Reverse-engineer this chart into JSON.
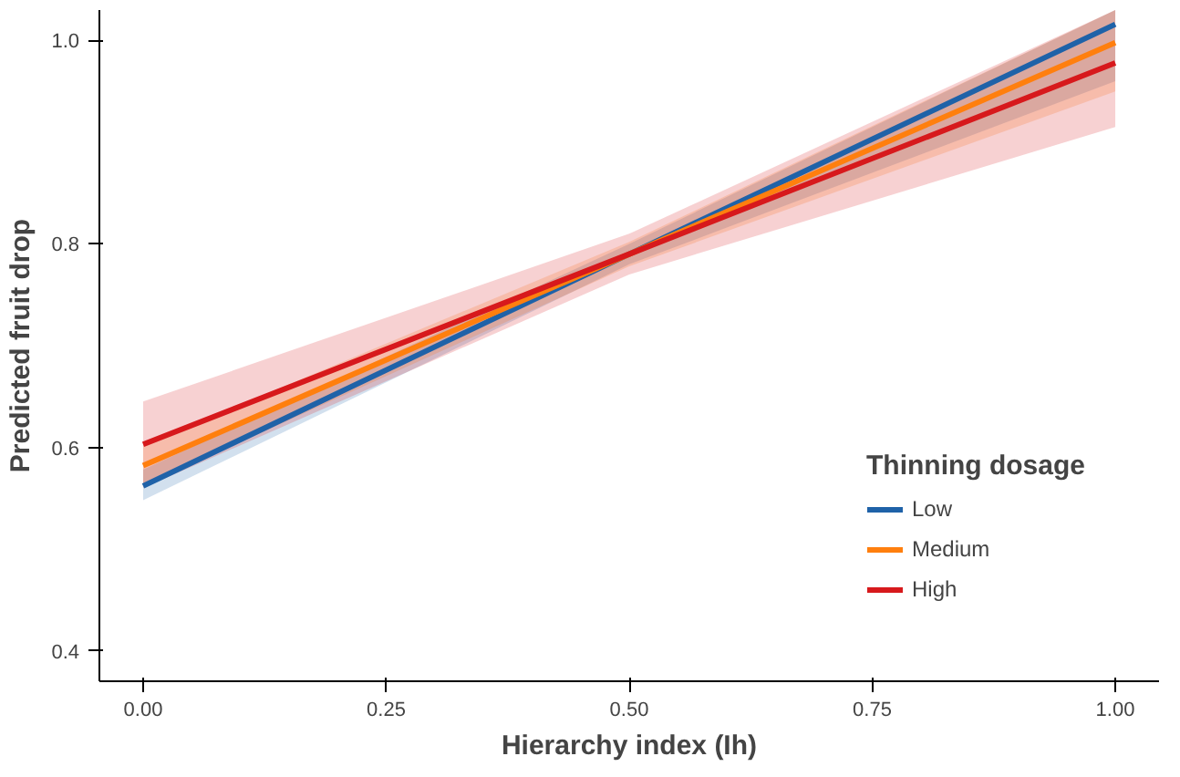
{
  "chart_data": {
    "type": "line",
    "xlabel": "Hierarchy index (Ih)",
    "ylabel": "Predicted fruit drop",
    "legend_title": "Thinning dosage",
    "x": [
      0,
      0.5,
      1
    ],
    "series": [
      {
        "name": "Low",
        "color": "#1f62a8",
        "values": [
          0.562,
          0.79,
          1.016
        ],
        "lower": [
          0.548,
          0.78,
          0.96
        ],
        "upper": [
          0.578,
          0.8,
          1.03
        ]
      },
      {
        "name": "Medium",
        "color": "#ff7f0e",
        "values": [
          0.582,
          0.79,
          0.998
        ],
        "lower": [
          0.562,
          0.778,
          0.95
        ],
        "upper": [
          0.602,
          0.802,
          1.03
        ]
      },
      {
        "name": "High",
        "color": "#d7191c",
        "values": [
          0.603,
          0.79,
          0.978
        ],
        "lower": [
          0.56,
          0.77,
          0.915
        ],
        "upper": [
          0.645,
          0.81,
          1.03
        ]
      }
    ],
    "xlim": [
      -0.045,
      1.045
    ],
    "ylim": [
      0.37,
      1.03
    ],
    "xticks": [
      {
        "value": 0,
        "label": "0.00"
      },
      {
        "value": 0.25,
        "label": "0.25"
      },
      {
        "value": 0.5,
        "label": "0.50"
      },
      {
        "value": 0.75,
        "label": "0.75"
      },
      {
        "value": 1,
        "label": "1.00"
      }
    ],
    "yticks": [
      0.4,
      0.6,
      0.8,
      {
        "value": 1,
        "label": "1.0"
      }
    ],
    "grid": false,
    "legend": "bottom right",
    "line_style": "solid"
  }
}
